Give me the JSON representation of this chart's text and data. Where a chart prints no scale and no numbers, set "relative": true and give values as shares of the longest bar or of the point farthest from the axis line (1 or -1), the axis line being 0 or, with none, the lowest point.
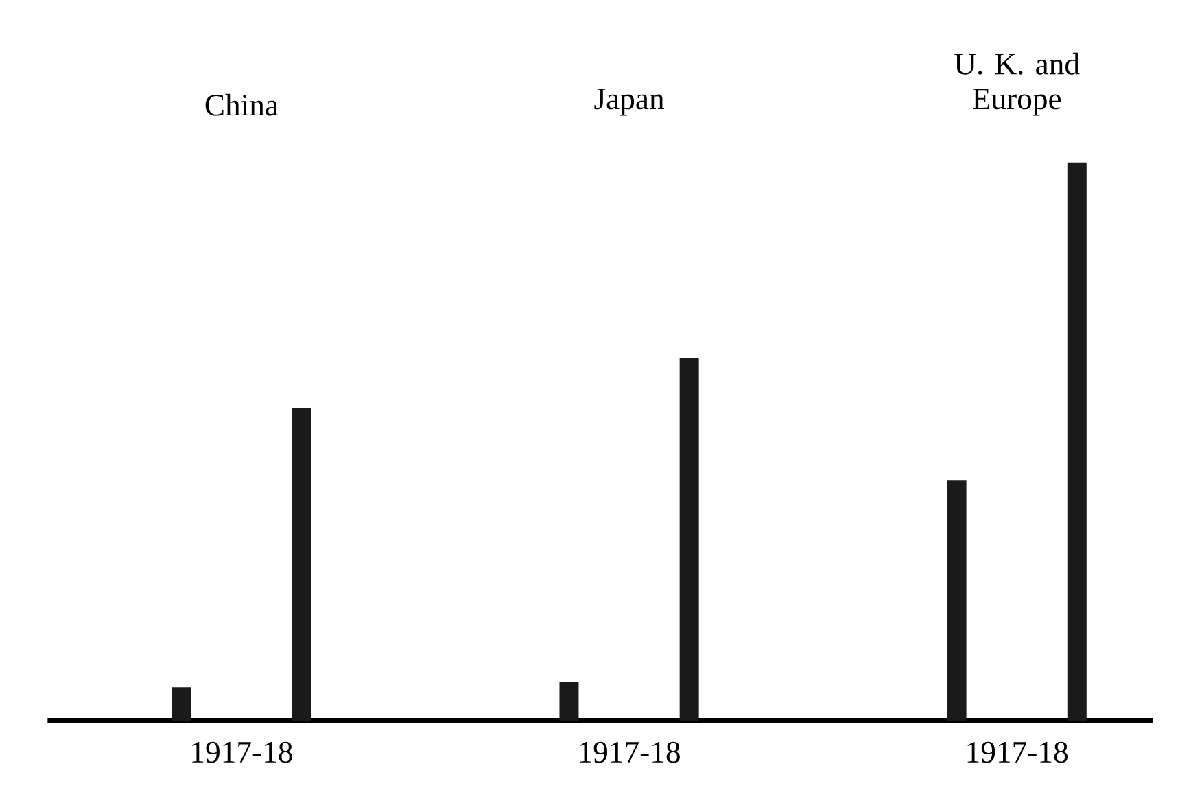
{
  "chart_data": {
    "type": "bar",
    "relative": true,
    "categories": [
      "China",
      "Japan",
      "U. K. and Europe"
    ],
    "series": [
      {
        "color": "#1a1a1a",
        "values": [
          0.06,
          0.07,
          0.43
        ]
      },
      {
        "color": "#1a1a1a",
        "values": [
          0.56,
          0.65,
          1.0
        ]
      }
    ],
    "annotations": [
      "1917-18",
      "1917-18",
      "1917-18"
    ]
  }
}
